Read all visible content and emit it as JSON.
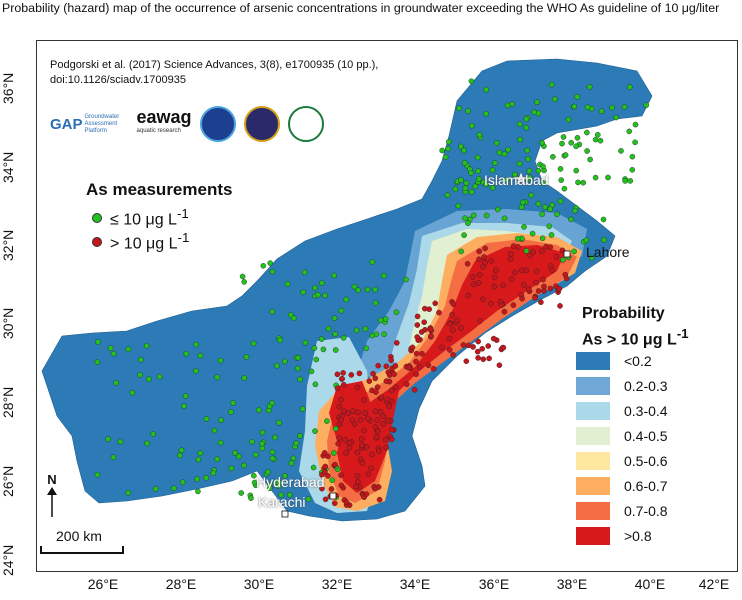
{
  "title": "Probability (hazard) map of the occurrence of arsenic concentrations in groundwater exceeding the WHO As guideline of 10 μg/liter",
  "citation": {
    "line1": "Podgorski et al. (2017) Science Advances, 3(8), e1700935 (10 pp.),",
    "line2": "doi:10.1126/sciadv.1700935"
  },
  "logos": {
    "gap_name": "GAP",
    "gap_sub": "Groundwater Assessment Platform",
    "eawag_name": "eawag",
    "eawag_sub": "aquatic research"
  },
  "axes": {
    "y_ticks": [
      "36°N",
      "34°N",
      "32°N",
      "30°N",
      "28°N",
      "26°N",
      "24°N"
    ],
    "x_ticks": [
      "26°E",
      "28°E",
      "30°E",
      "32°E",
      "34°E",
      "36°E",
      "38°E",
      "40°E",
      "42°E"
    ]
  },
  "measurements": {
    "title": "As measurements",
    "low_label": "≤ 10 μg L",
    "high_label": "> 10 μg L",
    "exponent": "-1",
    "low_color": "#22c11f",
    "high_color": "#c4161c"
  },
  "probability_legend": {
    "title_line1": "Probability",
    "title_line2": "As > 10 μg L",
    "exponent": "-1",
    "classes": [
      {
        "label": "<0.2",
        "color": "#2c7bb6"
      },
      {
        "label": "0.2-0.3",
        "color": "#6fa8d6"
      },
      {
        "label": "0.3-0.4",
        "color": "#abd9e9"
      },
      {
        "label": "0.4-0.5",
        "color": "#e0f0d0"
      },
      {
        "label": "0.5-0.6",
        "color": "#fee8a0"
      },
      {
        "label": "0.6-0.7",
        "color": "#fdae61"
      },
      {
        "label": "0.7-0.8",
        "color": "#f46d43"
      },
      {
        "label": ">0.8",
        "color": "#d7191c"
      }
    ]
  },
  "cities": {
    "islamabad": "Islamabad",
    "lahore": "Lahore",
    "hyderabad": "Hyderabad",
    "karachi": "Karachi"
  },
  "north_label": "N",
  "scale_label": "200 km"
}
